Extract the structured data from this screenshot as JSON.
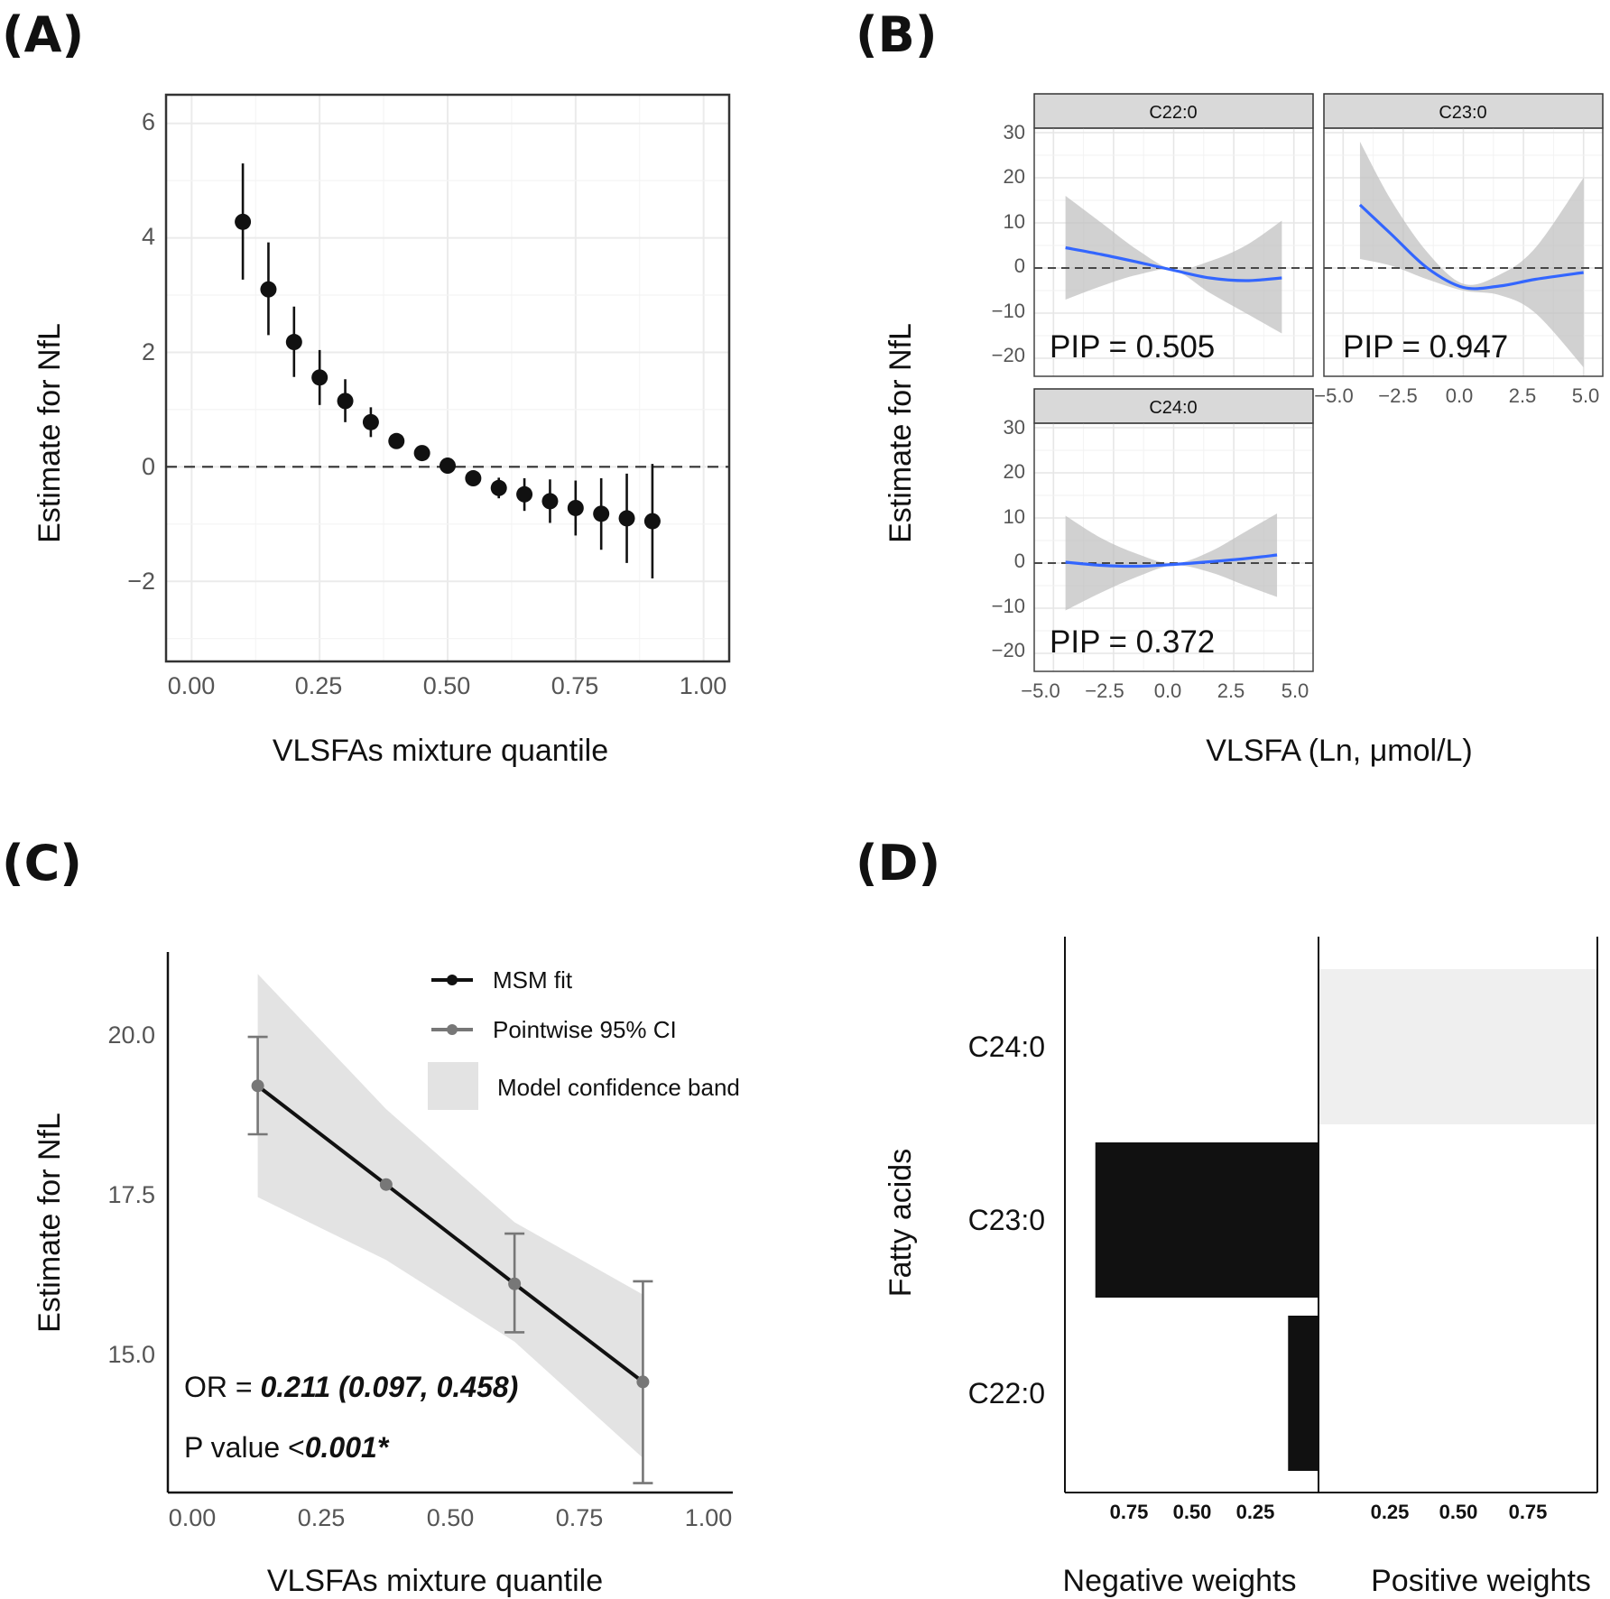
{
  "panels": {
    "a": {
      "letter": "(A)"
    },
    "b": {
      "letter": "(B)"
    },
    "c": {
      "letter": "(C)"
    },
    "d": {
      "letter": "(D)"
    }
  },
  "chart_data": [
    {
      "id": "A",
      "type": "scatter",
      "title": "",
      "xlabel": "VLSFAs mixture quantile",
      "ylabel": "Estimate for NfL",
      "xlim": [
        -0.05,
        1.05
      ],
      "ylim": [
        -3.4,
        6.5
      ],
      "xticks": [
        "0.00",
        "0.25",
        "0.50",
        "0.75",
        "1.00"
      ],
      "yticks": [
        "−2",
        "0",
        "2",
        "4",
        "6"
      ],
      "reference_line": 0,
      "points": [
        {
          "x": 0.1,
          "y": 4.28,
          "lo": 3.27,
          "hi": 5.3
        },
        {
          "x": 0.15,
          "y": 3.1,
          "lo": 2.3,
          "hi": 3.92
        },
        {
          "x": 0.2,
          "y": 2.18,
          "lo": 1.57,
          "hi": 2.8
        },
        {
          "x": 0.25,
          "y": 1.56,
          "lo": 1.08,
          "hi": 2.04
        },
        {
          "x": 0.3,
          "y": 1.15,
          "lo": 0.78,
          "hi": 1.53
        },
        {
          "x": 0.35,
          "y": 0.78,
          "lo": 0.52,
          "hi": 1.04
        },
        {
          "x": 0.4,
          "y": 0.45,
          "lo": 0.32,
          "hi": 0.58
        },
        {
          "x": 0.45,
          "y": 0.24,
          "lo": 0.16,
          "hi": 0.32
        },
        {
          "x": 0.5,
          "y": 0.02,
          "lo": -0.02,
          "hi": 0.06
        },
        {
          "x": 0.55,
          "y": -0.2,
          "lo": -0.28,
          "hi": -0.12
        },
        {
          "x": 0.6,
          "y": -0.37,
          "lo": -0.55,
          "hi": -0.19
        },
        {
          "x": 0.65,
          "y": -0.48,
          "lo": -0.77,
          "hi": -0.2
        },
        {
          "x": 0.7,
          "y": -0.6,
          "lo": -0.98,
          "hi": -0.22
        },
        {
          "x": 0.75,
          "y": -0.72,
          "lo": -1.2,
          "hi": -0.24
        },
        {
          "x": 0.8,
          "y": -0.82,
          "lo": -1.45,
          "hi": -0.2
        },
        {
          "x": 0.85,
          "y": -0.9,
          "lo": -1.68,
          "hi": -0.12
        },
        {
          "x": 0.9,
          "y": -0.95,
          "lo": -1.95,
          "hi": 0.05
        }
      ]
    },
    {
      "id": "B",
      "type": "line",
      "title": "",
      "xlabel": "VLSFA (Ln, μmol/L)",
      "ylabel": "Estimate for NfL",
      "xlim": [
        -5.8,
        5.8
      ],
      "ylim": [
        -24.0,
        31.0
      ],
      "xticks": [
        "−5.0",
        "−2.5",
        "0.0",
        "2.5",
        "5.0"
      ],
      "yticks": [
        "−20",
        "−10",
        "0",
        "10",
        "20",
        "30"
      ],
      "reference_line": 0,
      "facets": [
        {
          "strip": "C22:0",
          "pip_text": "PIP = 0.505",
          "x": [
            -4.5,
            -3.0,
            -1.5,
            0.0,
            1.5,
            3.0,
            4.5
          ],
          "y": [
            4.5,
            3.0,
            1.3,
            -0.5,
            -2.2,
            -2.8,
            -2.2
          ],
          "lo": [
            -7.0,
            -4.0,
            -1.5,
            -0.5,
            -5.5,
            -10.0,
            -14.5
          ],
          "hi": [
            16.0,
            10.0,
            4.0,
            -0.3,
            1.5,
            5.0,
            10.5
          ]
        },
        {
          "strip": "C23:0",
          "pip_text": "PIP = 0.947",
          "x": [
            -4.3,
            -3.0,
            -1.5,
            0.0,
            1.5,
            3.0,
            5.0
          ],
          "y": [
            14.0,
            7.5,
            0.0,
            -4.3,
            -4.0,
            -2.5,
            -1.0
          ],
          "lo": [
            2.0,
            0.5,
            -2.5,
            -5.0,
            -6.0,
            -10.0,
            -22.0
          ],
          "hi": [
            28.0,
            15.0,
            3.5,
            -3.5,
            -1.5,
            4.5,
            20.0
          ]
        },
        {
          "strip": "C24:0",
          "pip_text": "PIP = 0.372",
          "x": [
            -4.5,
            -3.0,
            -1.5,
            0.0,
            1.5,
            3.0,
            4.3
          ],
          "y": [
            0.2,
            -0.5,
            -0.7,
            -0.3,
            0.3,
            1.0,
            1.8
          ],
          "lo": [
            -10.5,
            -6.5,
            -3.0,
            -0.5,
            -2.0,
            -5.0,
            -7.5
          ],
          "hi": [
            10.5,
            5.5,
            2.0,
            -0.1,
            2.5,
            7.0,
            11.0
          ]
        }
      ]
    },
    {
      "id": "C",
      "type": "line",
      "title": "",
      "xlabel": "VLSFAs mixture quantile",
      "ylabel": "Estimate for NfL",
      "xlim": [
        -0.05,
        1.05
      ],
      "ylim": [
        13.0,
        21.6
      ],
      "xticks": [
        "0.00",
        "0.25",
        "0.50",
        "0.75",
        "1.00"
      ],
      "yticks": [
        "15.0",
        "17.5",
        "20.0"
      ],
      "series": [
        {
          "name": "MSM fit",
          "x": [
            0.125,
            0.375,
            0.625,
            0.875
          ],
          "y": [
            19.47,
            17.9,
            16.32,
            14.76
          ]
        },
        {
          "name": "Pointwise 95% CI",
          "x": [
            0.125,
            0.375,
            0.625,
            0.875
          ],
          "y": [
            19.47,
            17.9,
            16.32,
            14.76
          ],
          "lo": [
            18.7,
            17.9,
            15.55,
            13.15
          ],
          "hi": [
            20.25,
            17.9,
            17.12,
            16.36
          ]
        },
        {
          "name": "Model confidence band",
          "x": [
            0.125,
            0.375,
            0.625,
            0.875
          ],
          "lo": [
            17.7,
            16.7,
            15.4,
            13.55
          ],
          "hi": [
            21.25,
            19.1,
            17.3,
            16.15
          ]
        }
      ],
      "annotations": {
        "or_prefix": "OR = ",
        "or_value": "0.211 (0.097, 0.458)",
        "p_prefix": "P value <",
        "p_value": "0.001*"
      }
    },
    {
      "id": "D",
      "type": "bar",
      "title": "",
      "xlabel": "",
      "ylabel": "Fatty acids",
      "categories": [
        "C24:0",
        "C23:0",
        "C22:0"
      ],
      "negative_weights": [
        0,
        0.88,
        0.12
      ],
      "positive_weights": [
        1.0,
        0,
        0
      ],
      "xlim_each_side": [
        0,
        1.0
      ],
      "xticks_negative": [
        "0.75",
        "0.50",
        "0.25"
      ],
      "xticks_positive": [
        "0.25",
        "0.50",
        "0.75"
      ],
      "side_labels": [
        "Negative weights",
        "Positive weights"
      ]
    }
  ]
}
